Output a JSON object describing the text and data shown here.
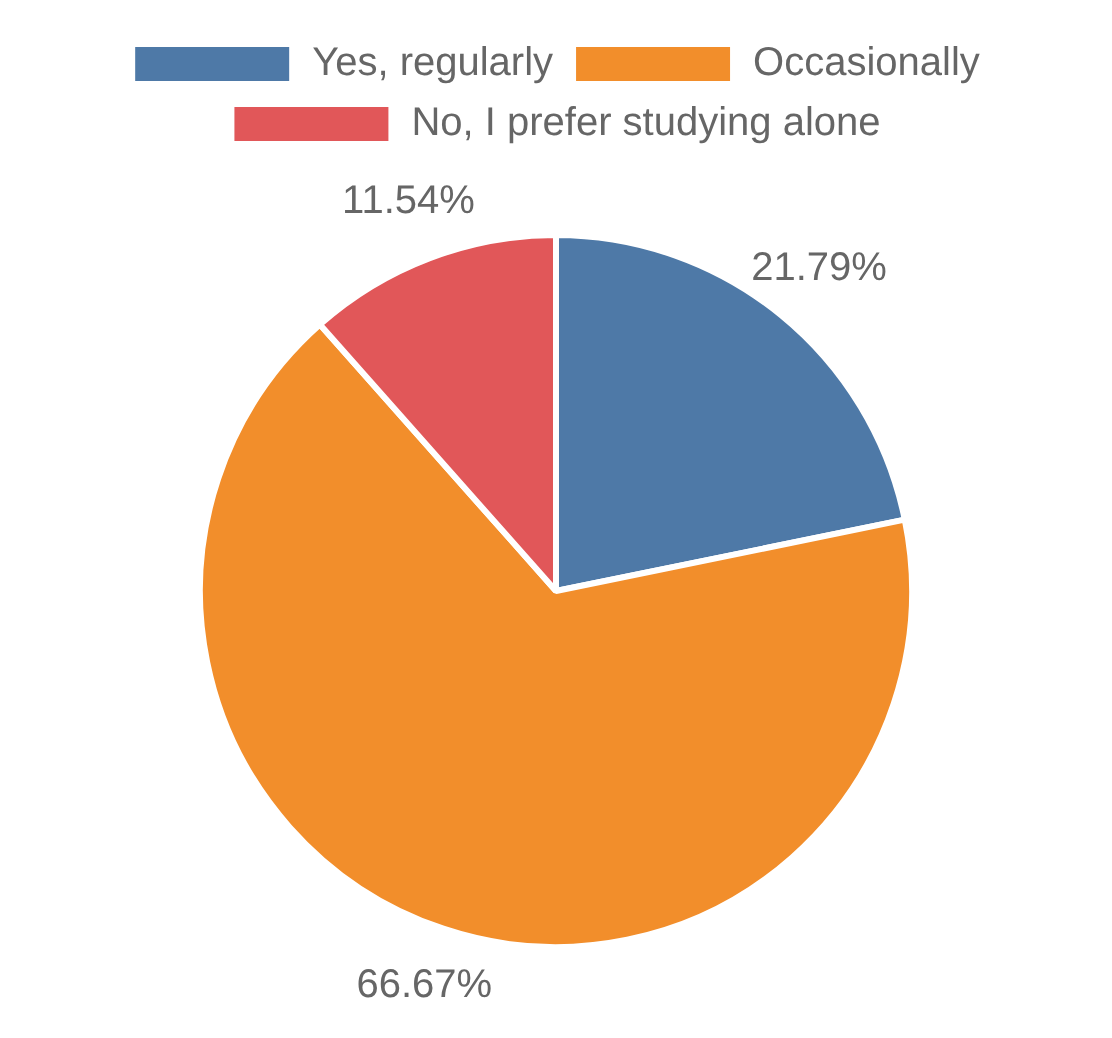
{
  "chart_data": {
    "type": "pie",
    "categories": [
      "Yes, regularly",
      "Occasionally",
      "No, I prefer studying alone"
    ],
    "values": [
      21.79,
      66.67,
      11.54
    ],
    "colors": [
      "#4e79a7",
      "#f28e2b",
      "#e15759"
    ],
    "value_labels": [
      "21.79%",
      "66.67%",
      "11.54%"
    ],
    "legend": "top"
  }
}
